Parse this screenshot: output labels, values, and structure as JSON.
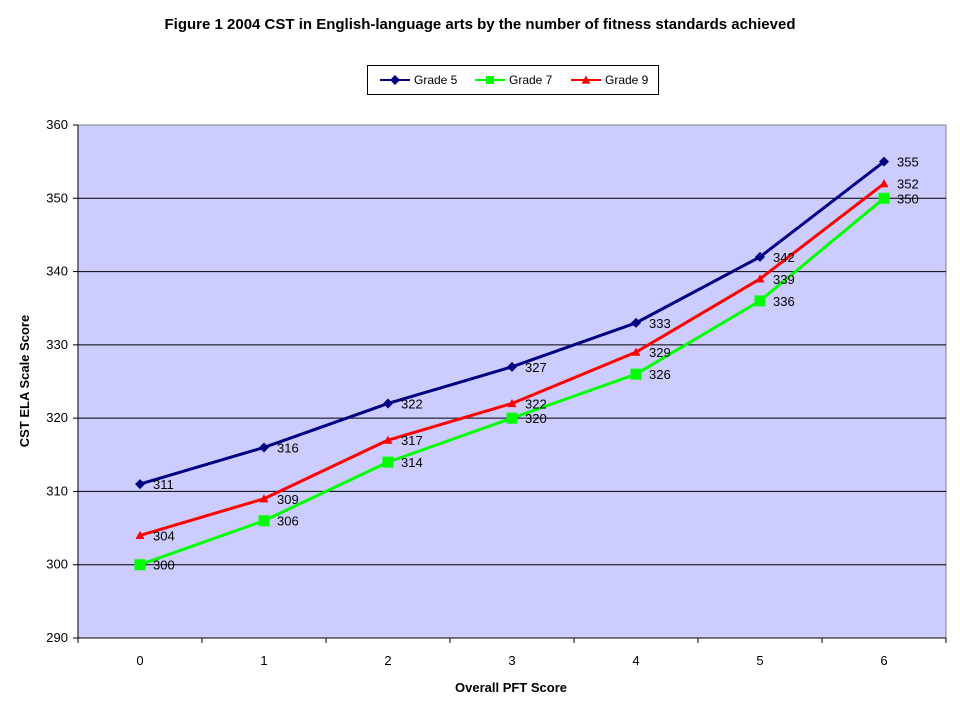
{
  "chart_data": {
    "type": "line",
    "title": "Figure 1 2004 CST in English-language arts by the number of fitness standards achieved",
    "xlabel": "Overall PFT Score",
    "ylabel": "CST ELA Scale Score",
    "x": [
      0,
      1,
      2,
      3,
      4,
      5,
      6
    ],
    "ylim": [
      290,
      360
    ],
    "yticks": [
      290,
      300,
      310,
      320,
      330,
      340,
      350,
      360
    ],
    "grid": true,
    "legend_position": "top",
    "plot_background": "#ccccff",
    "series": [
      {
        "name": "Grade 5",
        "color": "#000080",
        "marker": "diamond",
        "values": [
          311,
          316,
          322,
          327,
          333,
          342,
          355
        ]
      },
      {
        "name": "Grade 7",
        "color": "#00ff00",
        "marker": "square",
        "values": [
          300,
          306,
          314,
          320,
          326,
          336,
          350
        ]
      },
      {
        "name": "Grade 9",
        "color": "#ff0000",
        "marker": "triangle",
        "values": [
          304,
          309,
          317,
          322,
          329,
          339,
          352
        ]
      }
    ]
  }
}
